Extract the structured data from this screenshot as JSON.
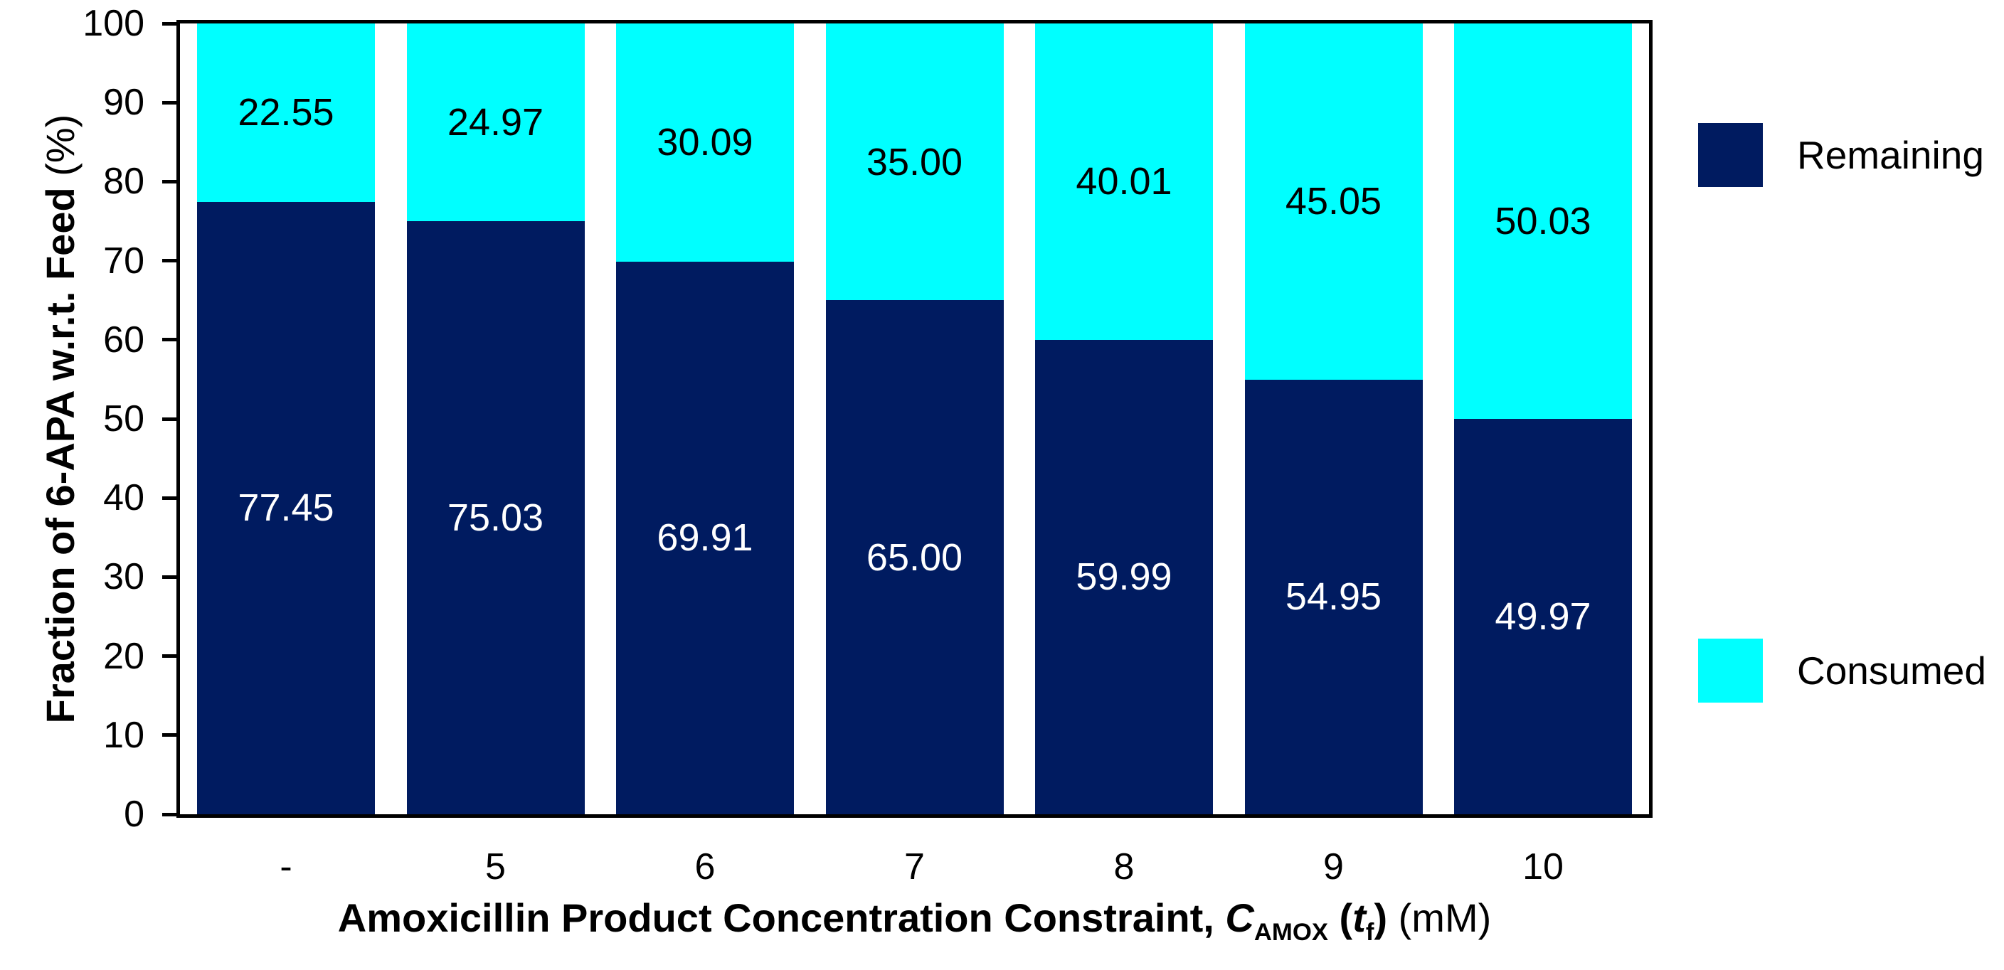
{
  "figure": {
    "background": "#ffffff",
    "axis_color": "#000000",
    "ylabel_main": "Fraction of 6-APA w.r.t. Feed ",
    "ylabel_units": "(%)",
    "xlabel_prefix": "Amoxicillin Product Concentration Constraint, ",
    "xlabel_symbol": "C",
    "xlabel_symbol_sub": "AMOX",
    "xlabel_paren_open": " (",
    "xlabel_t": "t",
    "xlabel_t_sub": "f",
    "xlabel_paren_close": ")",
    "xlabel_units": " (mM)",
    "legend": [
      {
        "label": "Remaining",
        "color": "#001B60"
      },
      {
        "label": "Consumed",
        "color": "#00FFFF"
      }
    ]
  },
  "chart_data": {
    "type": "bar",
    "stacked": true,
    "title": "",
    "xlabel": "Amoxicillin Product Concentration Constraint, C_AMOX (t_f) (mM)",
    "ylabel": "Fraction of 6-APA w.r.t. Feed (%)",
    "categories": [
      "-",
      "5",
      "6",
      "7",
      "8",
      "9",
      "10"
    ],
    "series": [
      {
        "name": "Remaining",
        "color": "#001B60",
        "label_color": "#ffffff",
        "values": [
          77.45,
          75.03,
          69.91,
          65.0,
          59.99,
          54.95,
          49.97
        ]
      },
      {
        "name": "Consumed",
        "color": "#00FFFF",
        "label_color": "#000000",
        "values": [
          22.55,
          24.97,
          30.09,
          35.0,
          40.01,
          45.05,
          50.03
        ]
      }
    ],
    "ylim": [
      0,
      100
    ],
    "yticks": [
      0,
      10,
      20,
      30,
      40,
      50,
      60,
      70,
      80,
      90,
      100
    ],
    "grid": false,
    "legend_position": "right",
    "bar_value_labels": true,
    "value_label_decimals": 2
  }
}
